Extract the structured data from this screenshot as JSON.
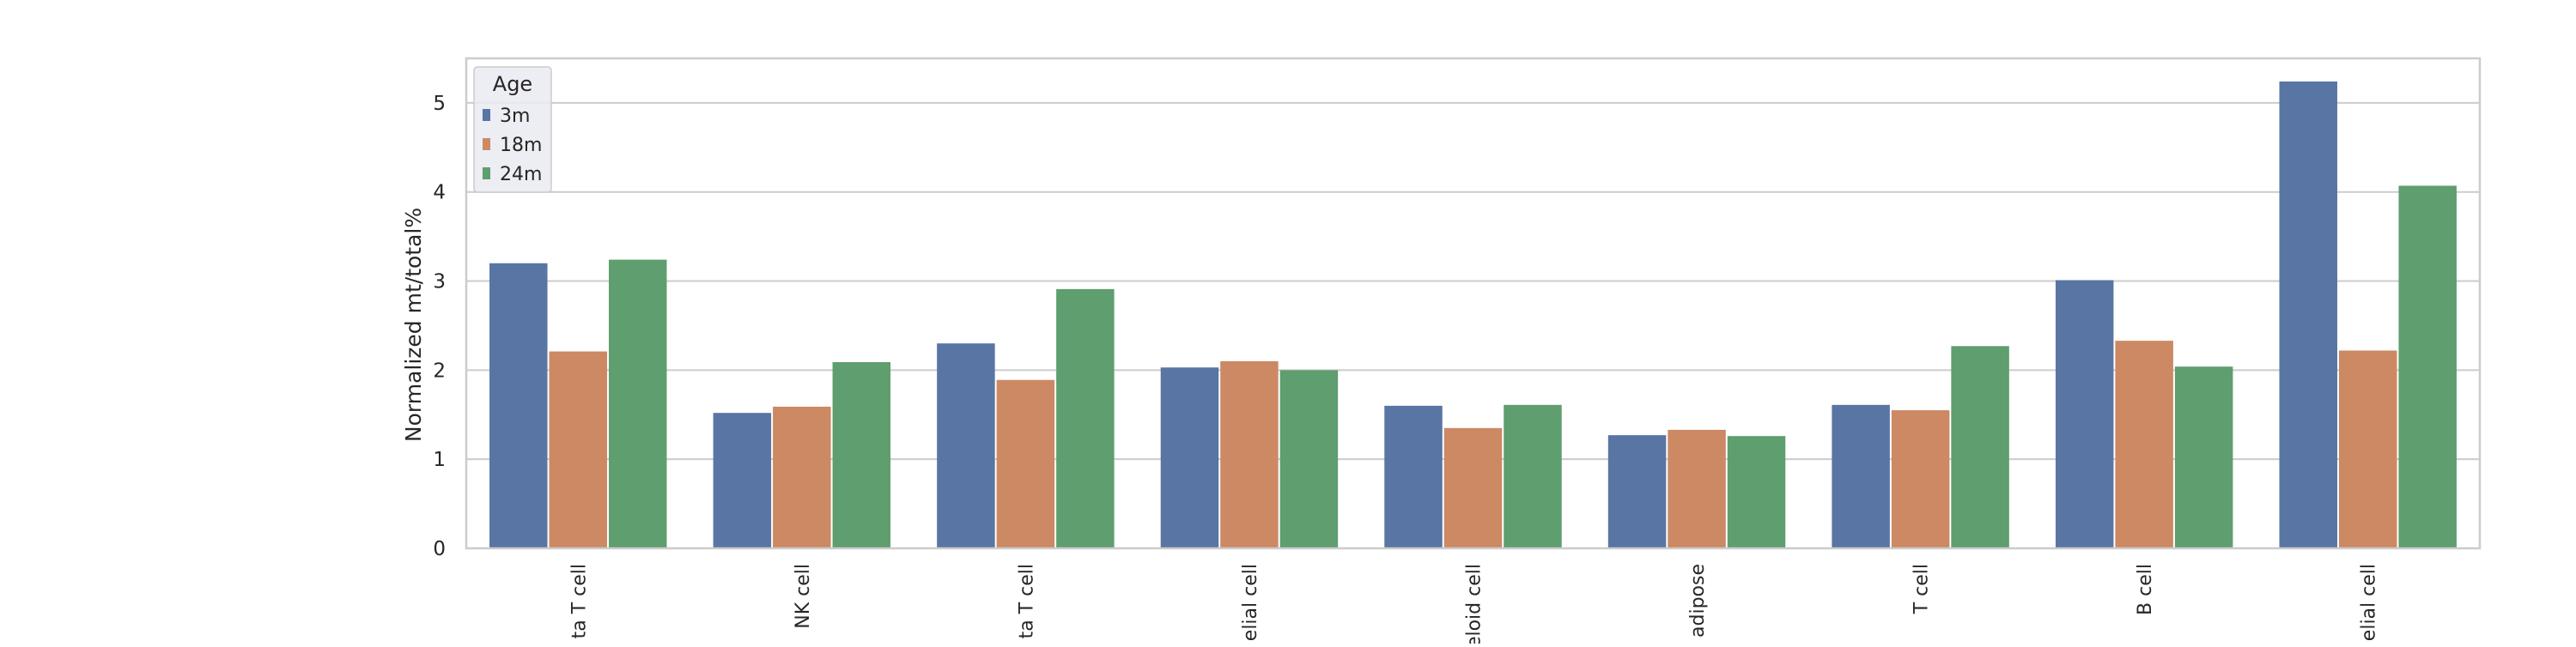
{
  "chart_data": {
    "type": "bar",
    "title": "",
    "xlabel": "",
    "ylabel": "Normalized mt/total%",
    "ylim": [
      0,
      5.5
    ],
    "yticks": [
      0,
      1,
      2,
      3,
      4,
      5
    ],
    "grid": true,
    "legend_placement": "top-left",
    "legend_title": "Age",
    "categories": [
      "ta T cell",
      "NK cell",
      "ta T cell",
      "elial cell",
      "eloid cell",
      "adipose",
      "T cell",
      "B cell",
      "elial cell"
    ],
    "series": [
      {
        "name": "3m",
        "color": "#5875a4",
        "values": [
          3.2,
          1.52,
          2.3,
          2.03,
          1.6,
          1.27,
          1.61,
          3.01,
          5.24
        ]
      },
      {
        "name": "18m",
        "color": "#cc8963",
        "values": [
          2.21,
          1.59,
          1.89,
          2.1,
          1.35,
          1.33,
          1.55,
          2.33,
          2.22
        ]
      },
      {
        "name": "24m",
        "color": "#5f9e6e",
        "values": [
          3.24,
          2.09,
          2.91,
          2.0,
          1.61,
          1.26,
          2.27,
          2.04,
          4.07
        ]
      }
    ]
  }
}
